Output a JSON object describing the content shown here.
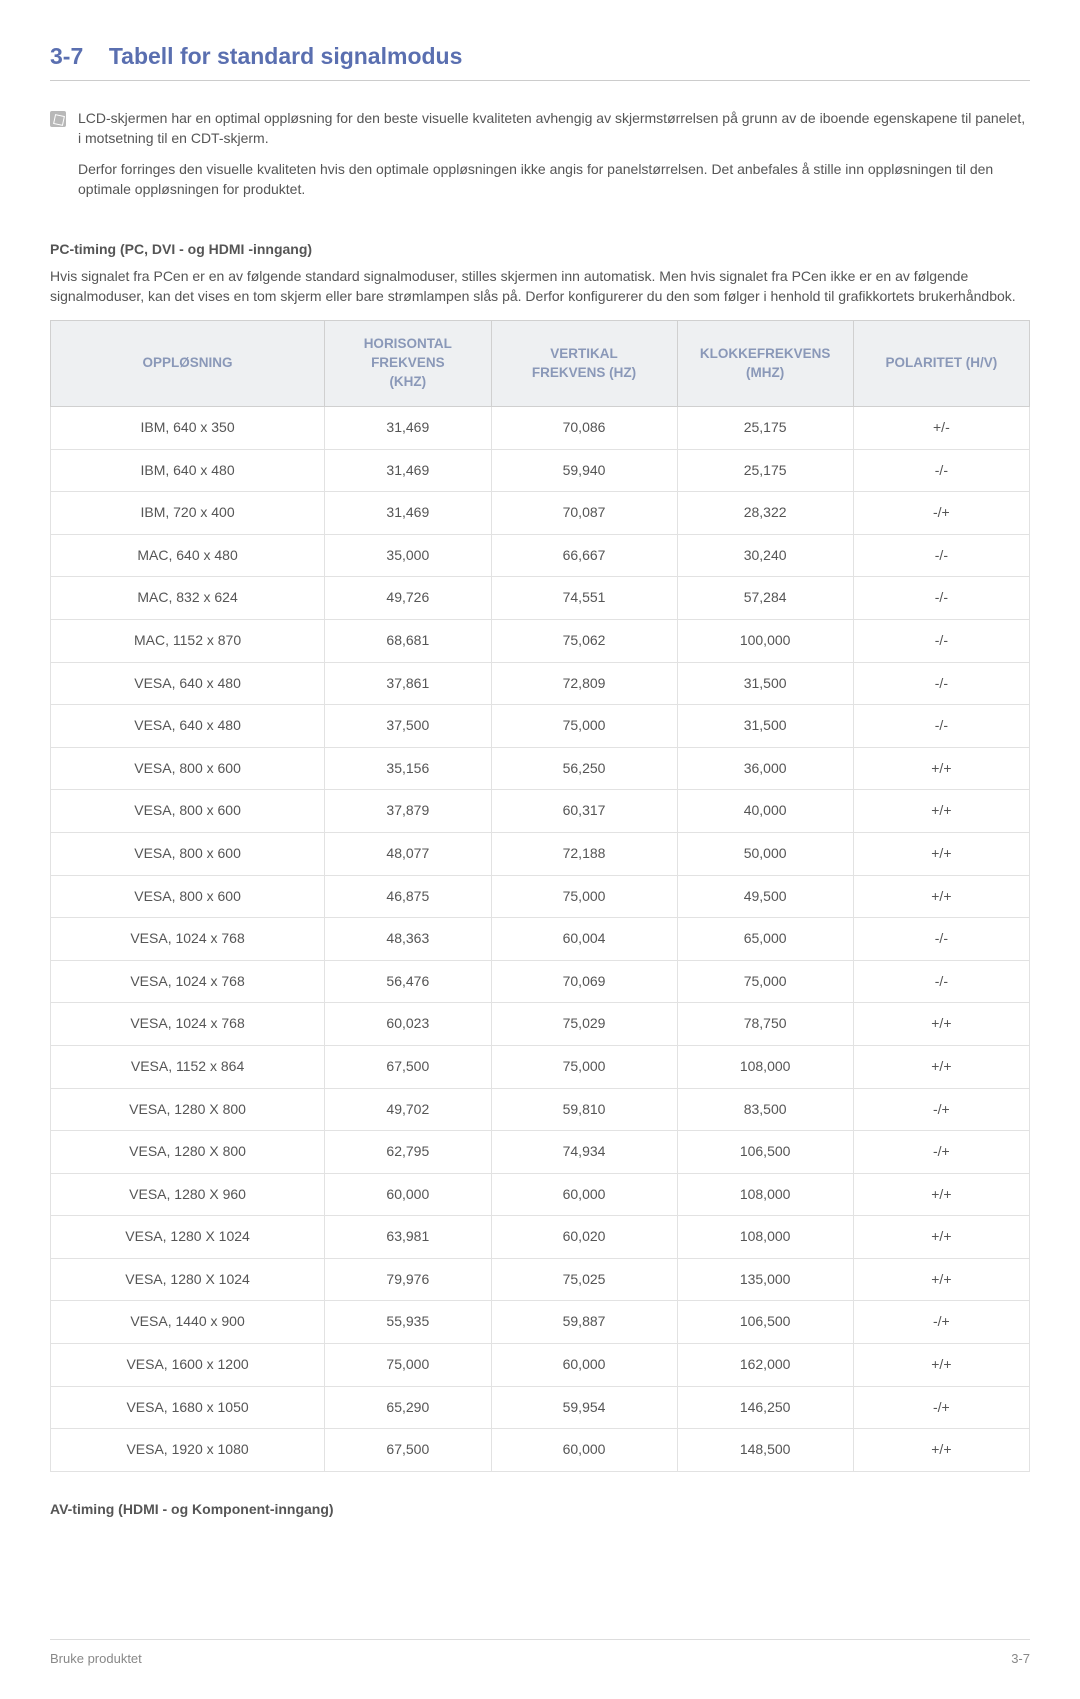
{
  "heading": {
    "number": "3-7",
    "title": "Tabell for standard signalmodus",
    "color": "#5a6fb0"
  },
  "note": {
    "p1": "LCD-skjermen har en optimal oppløsning for den beste visuelle kvaliteten avhengig av skjermstørrelsen på grunn av de iboende egenskapene til panelet, i motsetning til en CDT-skjerm.",
    "p2": "Derfor forringes den visuelle kvaliteten hvis den optimale oppløsningen ikke angis for panelstørrelsen. Det anbefales å stille inn oppløsningen til den optimale oppløsningen for produktet."
  },
  "pc_timing": {
    "subhead": "PC-timing (PC, DVI - og HDMI -inngang)",
    "intro": "Hvis signalet fra PCen er en av følgende standard signalmoduser, stilles skjermen inn automatisk. Men hvis signalet fra PCen ikke er en av følgende signalmoduser, kan det vises en tom skjerm eller bare strømlampen slås på. Derfor konfigurerer du den som følger i henhold til grafikkortets brukerhåndbok."
  },
  "table": {
    "header_bg": "#eef0f2",
    "header_color": "#8a98b8",
    "columns": [
      {
        "label": "OPPLØSNING",
        "width": "28%"
      },
      {
        "label": "HORISONTAL FREKVENS (KHZ)",
        "width": "17%"
      },
      {
        "label": "VERTIKAL FREKVENS (HZ)",
        "width": "19%"
      },
      {
        "label": "KLOKKEFREKVENS (MHZ)",
        "width": "18%"
      },
      {
        "label": "POLARITET (H/V)",
        "width": "18%"
      }
    ],
    "rows": [
      [
        "IBM, 640 x 350",
        "31,469",
        "70,086",
        "25,175",
        "+/-"
      ],
      [
        "IBM, 640 x 480",
        "31,469",
        "59,940",
        "25,175",
        "-/-"
      ],
      [
        "IBM, 720 x 400",
        "31,469",
        "70,087",
        "28,322",
        "-/+"
      ],
      [
        "MAC, 640 x 480",
        "35,000",
        "66,667",
        "30,240",
        "-/-"
      ],
      [
        "MAC, 832 x 624",
        "49,726",
        "74,551",
        "57,284",
        "-/-"
      ],
      [
        "MAC, 1152 x 870",
        "68,681",
        "75,062",
        "100,000",
        "-/-"
      ],
      [
        "VESA, 640 x 480",
        "37,861",
        "72,809",
        "31,500",
        "-/-"
      ],
      [
        "VESA, 640 x 480",
        "37,500",
        "75,000",
        "31,500",
        "-/-"
      ],
      [
        "VESA, 800 x 600",
        "35,156",
        "56,250",
        "36,000",
        "+/+"
      ],
      [
        "VESA, 800 x 600",
        "37,879",
        "60,317",
        "40,000",
        "+/+"
      ],
      [
        "VESA, 800 x 600",
        "48,077",
        "72,188",
        "50,000",
        "+/+"
      ],
      [
        "VESA, 800 x 600",
        "46,875",
        "75,000",
        "49,500",
        "+/+"
      ],
      [
        "VESA, 1024 x 768",
        "48,363",
        "60,004",
        "65,000",
        "-/-"
      ],
      [
        "VESA, 1024 x 768",
        "56,476",
        "70,069",
        "75,000",
        "-/-"
      ],
      [
        "VESA, 1024 x 768",
        "60,023",
        "75,029",
        "78,750",
        "+/+"
      ],
      [
        "VESA, 1152 x 864",
        "67,500",
        "75,000",
        "108,000",
        "+/+"
      ],
      [
        "VESA, 1280 X 800",
        "49,702",
        "59,810",
        "83,500",
        "-/+"
      ],
      [
        "VESA, 1280 X 800",
        "62,795",
        "74,934",
        "106,500",
        "-/+"
      ],
      [
        "VESA, 1280 X 960",
        "60,000",
        "60,000",
        "108,000",
        "+/+"
      ],
      [
        "VESA, 1280 X 1024",
        "63,981",
        "60,020",
        "108,000",
        "+/+"
      ],
      [
        "VESA, 1280 X 1024",
        "79,976",
        "75,025",
        "135,000",
        "+/+"
      ],
      [
        "VESA, 1440 x 900",
        "55,935",
        "59,887",
        "106,500",
        "-/+"
      ],
      [
        "VESA, 1600 x 1200",
        "75,000",
        "60,000",
        "162,000",
        "+/+"
      ],
      [
        "VESA, 1680 x 1050",
        "65,290",
        "59,954",
        "146,250",
        "-/+"
      ],
      [
        "VESA, 1920 x 1080",
        "67,500",
        "60,000",
        "148,500",
        "+/+"
      ]
    ]
  },
  "av_timing_subhead": "AV-timing (HDMI - og Komponent-inngang)",
  "footer": {
    "left": "Bruke produktet",
    "right": "3-7"
  }
}
